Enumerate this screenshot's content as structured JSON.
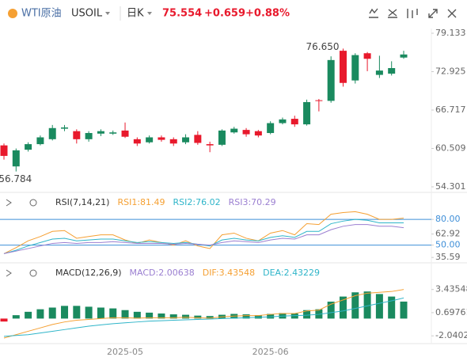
{
  "header": {
    "name": "WTI原油",
    "symbol": "USOIL",
    "period": "日K",
    "price": "75.554",
    "change": "+0.659",
    "change_pct": "+0.88%"
  },
  "chart_data": [
    {
      "type": "candlestick",
      "up_color": "#1a8a5f",
      "down_color": "#e8192c",
      "categories": [
        null,
        null,
        null,
        null,
        null,
        null,
        null,
        null,
        null,
        null,
        "2025-05",
        null,
        null,
        null,
        null,
        null,
        null,
        null,
        null,
        null,
        null,
        null,
        "2025-06",
        null,
        null,
        null,
        null,
        null,
        null,
        null,
        null,
        null,
        null,
        null
      ],
      "open": [
        61.0,
        57.6,
        60.3,
        61.2,
        62.0,
        63.7,
        63.3,
        62.0,
        62.9,
        62.9,
        63.4,
        62.0,
        61.5,
        62.3,
        62.0,
        61.5,
        62.7,
        61.2,
        61.1,
        63.1,
        63.5,
        63.3,
        63.0,
        64.6,
        65.3,
        64.4,
        68.3,
        68.2,
        76.3,
        71.5,
        75.9,
        72.4,
        72.6,
        75.2
      ],
      "high": [
        61.3,
        60.5,
        61.5,
        62.6,
        64.3,
        64.3,
        63.6,
        63.3,
        63.6,
        63.4,
        64.7,
        62.3,
        62.6,
        62.6,
        62.3,
        62.8,
        63.3,
        61.6,
        63.6,
        64.0,
        63.8,
        63.5,
        64.9,
        65.5,
        65.8,
        68.4,
        68.5,
        75.4,
        76.65,
        75.9,
        76.1,
        75.5,
        74.6,
        76.3
      ],
      "low": [
        58.7,
        56.784,
        60.0,
        61.0,
        61.8,
        63.3,
        61.3,
        61.6,
        62.5,
        62.7,
        62.2,
        60.9,
        61.3,
        61.6,
        60.9,
        61.2,
        61.1,
        59.9,
        60.9,
        62.9,
        62.4,
        62.3,
        62.8,
        64.4,
        64.0,
        64.2,
        66.5,
        67.9,
        70.5,
        71.0,
        73.0,
        71.9,
        72.3,
        75.0
      ],
      "close": [
        59.3,
        60.2,
        61.2,
        62.3,
        63.8,
        63.9,
        62.0,
        63.0,
        63.3,
        63.1,
        62.4,
        61.3,
        62.3,
        61.9,
        61.3,
        62.3,
        61.4,
        61.0,
        63.4,
        63.7,
        62.8,
        62.6,
        64.6,
        65.2,
        64.4,
        68.0,
        68.2,
        74.8,
        71.1,
        75.6,
        75.0,
        73.1,
        73.5,
        75.7
      ],
      "max_label": "76.650",
      "min_label": "56.784",
      "ylim": [
        53.53,
        79.9
      ],
      "yticks": [
        {
          "value": 79.133,
          "label": "79.133"
        },
        {
          "value": 72.925,
          "label": "72.925"
        },
        {
          "value": 66.717,
          "label": "66.717"
        },
        {
          "value": 60.509,
          "label": "60.509"
        },
        {
          "value": 54.301,
          "label": "54.301"
        }
      ]
    },
    {
      "type": "line",
      "title": "RSI(7,14,21)",
      "ylim": [
        33,
        94
      ],
      "yticks": [
        {
          "value": 80,
          "label": "80.00"
        },
        62.92,
        {
          "value": 50,
          "label": "50.00"
        },
        35.59
      ],
      "hlines": [
        80,
        50
      ],
      "hline_color": "#3f8fd8",
      "series": [
        {
          "name": "RSI1",
          "label": "RSI1:81.49",
          "color": "#f5a033",
          "values": [
            40,
            47,
            55,
            60,
            66,
            67,
            58,
            60,
            62,
            62,
            56,
            52,
            56,
            53,
            50,
            55,
            49,
            46,
            62,
            64,
            58,
            55,
            64,
            67,
            62,
            75,
            74,
            86,
            88,
            89,
            86,
            80,
            80,
            81.49
          ]
        },
        {
          "name": "RSI2",
          "label": "RSI2:76.02",
          "color": "#2fb5c9",
          "values": [
            40,
            44,
            49,
            53,
            57,
            58,
            55,
            56,
            57,
            57,
            55,
            53,
            54,
            53,
            52,
            53,
            51,
            49,
            56,
            58,
            56,
            55,
            59,
            61,
            59,
            66,
            66,
            75,
            78,
            80,
            79,
            76,
            76,
            76.02
          ]
        },
        {
          "name": "RSI3",
          "label": "RSI3:70.29",
          "color": "#9b7fd1",
          "values": [
            40,
            43,
            46,
            49,
            52,
            53,
            52,
            53,
            53,
            54,
            53,
            52,
            52,
            52,
            51,
            52,
            51,
            50,
            53,
            55,
            54,
            53,
            56,
            58,
            57,
            62,
            62,
            68,
            72,
            74,
            74,
            72,
            72,
            70.29
          ]
        }
      ]
    },
    {
      "type": "macd",
      "title": "MACD(12,26,9)",
      "ylim": [
        -2.86,
        4.9
      ],
      "yticks": [
        3.43548,
        0.69761,
        -2.04027
      ],
      "up_color": "#1a8a5f",
      "down_color": "#e8192c",
      "series": [
        {
          "name": "MACD",
          "label": "MACD:2.00638",
          "color": "#9b7fd1",
          "values": [
            -0.35,
            0.4,
            0.8,
            1.1,
            1.3,
            1.5,
            1.5,
            1.4,
            1.3,
            1.2,
            1.0,
            0.8,
            0.7,
            0.6,
            0.5,
            0.45,
            0.35,
            0.3,
            0.45,
            0.55,
            0.5,
            0.4,
            0.55,
            0.65,
            0.6,
            1.0,
            1.1,
            2.0,
            2.6,
            3.1,
            3.2,
            2.9,
            2.6,
            2.00638
          ]
        },
        {
          "name": "DIF",
          "label": "DIF:3.43548",
          "color": "#f5a033",
          "values": [
            -2.3,
            -1.9,
            -1.5,
            -1.1,
            -0.7,
            -0.4,
            -0.2,
            -0.1,
            0.0,
            0.1,
            0.1,
            0.05,
            0.1,
            0.1,
            0.1,
            0.15,
            0.1,
            0.05,
            0.2,
            0.3,
            0.35,
            0.35,
            0.5,
            0.6,
            0.6,
            0.9,
            1.0,
            1.7,
            2.2,
            2.7,
            3.0,
            3.1,
            3.2,
            3.43548
          ]
        },
        {
          "name": "DEA",
          "label": "DEA:2.43229",
          "color": "#2fb5c9",
          "values": [
            -2.1,
            -2.0,
            -1.9,
            -1.7,
            -1.5,
            -1.3,
            -1.1,
            -0.9,
            -0.75,
            -0.6,
            -0.5,
            -0.4,
            -0.3,
            -0.25,
            -0.2,
            -0.15,
            -0.1,
            -0.05,
            0.0,
            0.05,
            0.1,
            0.15,
            0.2,
            0.3,
            0.35,
            0.4,
            0.5,
            0.7,
            0.9,
            1.2,
            1.5,
            1.8,
            2.1,
            2.43229
          ]
        }
      ]
    }
  ]
}
